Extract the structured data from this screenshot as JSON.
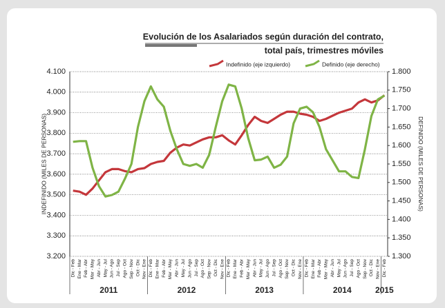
{
  "chart_data": {
    "type": "line",
    "title": "Evolución de los Asalariados según duración del contrato,",
    "subtitle": "total país, trimestres móviles",
    "y_label": "INDEFINIDO (MILES DE PERSONAS)",
    "y2_label": "DEFINIDO (MILES DE PERSONAS)",
    "categories": [
      "Dic - Feb",
      "Ene - Mar",
      "Feb - Abr",
      "Mar - May",
      "Abr - Jun",
      "May - Jul",
      "Jun - Ago",
      "Jul - Sep",
      "Ago - Oct",
      "Sep - Nov",
      "Oct - Dic",
      "Nov - Ene",
      "Dic - Feb",
      "Ene - Mar",
      "Feb - Abr",
      "Mar - May",
      "Abr - Jun",
      "May - Jul",
      "Jun - Ago",
      "Jul - Sep",
      "Ago - Oct",
      "Sep - Nov",
      "Oct - Dic",
      "Nov - Ene",
      "Dic - Feb",
      "Ene - Mar",
      "Feb - Abr",
      "Mar - May",
      "Abr - Jun",
      "May - Jul",
      "Jun - Ago",
      "Jul - Sep",
      "Ago - Oct",
      "Sep - Nov",
      "Oct - Dic",
      "Nov - Ene",
      "Dic - Feb",
      "Ene - Mar",
      "Feb - Abr",
      "Mar - May",
      "Abr - Jun",
      "May - Jul",
      "Jun - Ago",
      "Jul - Sep",
      "Ago - Oct",
      "Sep - Nov",
      "Oct - Dic",
      "Nov - Ene",
      "Dic - Feb"
    ],
    "x_groups": [
      {
        "label": "2011",
        "count": 12
      },
      {
        "label": "2012",
        "count": 12
      },
      {
        "label": "2013",
        "count": 12
      },
      {
        "label": "2014",
        "count": 12
      },
      {
        "label": "2015",
        "count": 1
      }
    ],
    "series": [
      {
        "name": "Indefinido (eje izquierdo)",
        "color": "#c4373b",
        "axis": "y",
        "values": [
          3520,
          3515,
          3500,
          3530,
          3570,
          3610,
          3625,
          3625,
          3615,
          3610,
          3625,
          3630,
          3650,
          3660,
          3665,
          3705,
          3730,
          3745,
          3740,
          3755,
          3770,
          3780,
          3780,
          3790,
          3765,
          3745,
          3790,
          3840,
          3880,
          3860,
          3850,
          3870,
          3890,
          3905,
          3905,
          3895,
          3890,
          3880,
          3860,
          3870,
          3885,
          3900,
          3910,
          3920,
          3950,
          3965,
          3950,
          3960,
          3985
        ]
      },
      {
        "name": "Definido (eje derecho)",
        "color": "#7fb446",
        "axis": "y2",
        "values": [
          1610,
          1612,
          1612,
          1540,
          1490,
          1462,
          1466,
          1475,
          1510,
          1550,
          1650,
          1720,
          1760,
          1725,
          1705,
          1640,
          1590,
          1550,
          1545,
          1550,
          1540,
          1575,
          1650,
          1720,
          1765,
          1760,
          1700,
          1620,
          1560,
          1562,
          1570,
          1540,
          1548,
          1570,
          1660,
          1700,
          1705,
          1690,
          1650,
          1590,
          1560,
          1530,
          1530,
          1515,
          1512,
          1590,
          1680,
          1725,
          1735
        ]
      }
    ],
    "ylim": [
      3200,
      4100
    ],
    "yticks": [
      {
        "value": 3200,
        "label": "3.200"
      },
      {
        "value": 3300,
        "label": "3.300"
      },
      {
        "value": 3400,
        "label": "3.400"
      },
      {
        "value": 3500,
        "label": "3.500"
      },
      {
        "value": 3600,
        "label": "3.600"
      },
      {
        "value": 3700,
        "label": "3.700"
      },
      {
        "value": 3800,
        "label": "3.800"
      },
      {
        "value": 3900,
        "label": "3.900"
      },
      {
        "value": 4000,
        "label": "4.000"
      },
      {
        "value": 4100,
        "label": "4.100"
      }
    ],
    "y2lim": [
      1300,
      1800
    ],
    "y2ticks": [
      {
        "value": 1300,
        "label": "1.300"
      },
      {
        "value": 1350,
        "label": "1.350"
      },
      {
        "value": 1400,
        "label": "1.400"
      },
      {
        "value": 1450,
        "label": "1.450"
      },
      {
        "value": 1500,
        "label": "1.500"
      },
      {
        "value": 1550,
        "label": "1.550"
      },
      {
        "value": 1600,
        "label": "1.600"
      },
      {
        "value": 1650,
        "label": "1.650"
      },
      {
        "value": 1700,
        "label": "1.700"
      },
      {
        "value": 1750,
        "label": "1.750"
      },
      {
        "value": 1800,
        "label": "1.800"
      }
    ],
    "grid": true
  }
}
